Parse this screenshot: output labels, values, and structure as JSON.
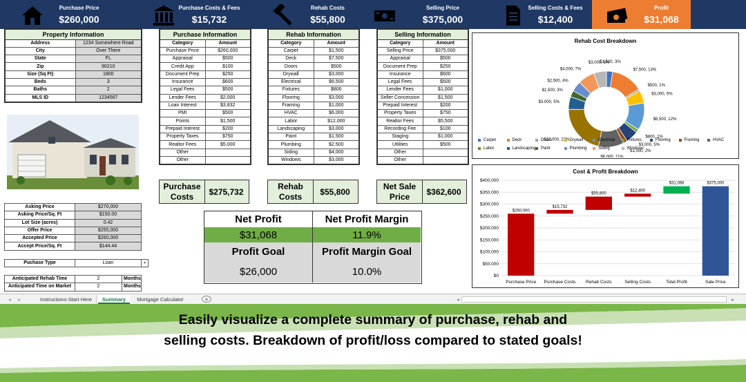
{
  "kpis": [
    {
      "icon": "house-icon",
      "label": "Purchase Price",
      "value": "$260,000"
    },
    {
      "icon": "bank-icon",
      "label": "Purchase Costs & Fees",
      "value": "$15,732"
    },
    {
      "icon": "hammer-icon",
      "label": "Rehab Costs",
      "value": "$55,800"
    },
    {
      "icon": "money-icon",
      "label": "Selling Price",
      "value": "$375,000"
    },
    {
      "icon": "document-icon",
      "label": "Selling Costs & Fees",
      "value": "$12,400"
    },
    {
      "icon": "cash-icon",
      "label": "Profit",
      "value": "$31,068"
    }
  ],
  "colors": {
    "banner": "#1f3864",
    "profit_accent": "#ed7d31",
    "table_header": "#e2efda",
    "profit_green": "#70ad47",
    "grey_cell": "#d9d9d9",
    "bar_red": "#c00000",
    "bar_green": "#00b050",
    "bar_blue": "#2f5597"
  },
  "property": {
    "title": "Property Information",
    "rows": [
      [
        "Address",
        "1234 Somewhere Road"
      ],
      [
        "City",
        "Over There"
      ],
      [
        "State",
        "FL"
      ],
      [
        "Zip",
        "90210"
      ],
      [
        "Size (Sq Ft)",
        "1800"
      ],
      [
        "Beds",
        "3"
      ],
      [
        "Baths",
        "2"
      ],
      [
        "MLS ID",
        "1234567"
      ]
    ]
  },
  "asking": {
    "rows": [
      [
        "Asking Price",
        "$270,000"
      ],
      [
        "Asking Price/Sq. Ft",
        "$150.00"
      ],
      [
        "Lot Size (acres)",
        "0.42"
      ],
      [
        "Offer Price",
        "$255,000"
      ],
      [
        "Accepted Price",
        "$260,000"
      ],
      [
        "Accept Price/Sq. Ft",
        "$144.44"
      ]
    ]
  },
  "purchase_type": {
    "label": "Puchase Type",
    "value": "Loan"
  },
  "anticipated": {
    "rows": [
      [
        "Anticipated Rehab Time",
        "2",
        "Months"
      ],
      [
        "Anticipated Time on Market",
        "2",
        "Months"
      ]
    ]
  },
  "col_headers": {
    "category": "Category",
    "amount": "Amount"
  },
  "purchase": {
    "title": "Purchase Information",
    "rows": [
      [
        "Purchase Price",
        "$260,000"
      ],
      [
        "Appraisal",
        "$500"
      ],
      [
        "Credit App",
        "$100"
      ],
      [
        "Document Prep",
        "$250"
      ],
      [
        "Insurance",
        "$600"
      ],
      [
        "Legal Fees",
        "$500"
      ],
      [
        "Lender Fees",
        "$2,000"
      ],
      [
        "Loan Interest",
        "$3,832"
      ],
      [
        "PMI",
        "$500"
      ],
      [
        "Points",
        "$1,500"
      ],
      [
        "Prepaid Interest",
        "$200"
      ],
      [
        "Property Taxes",
        "$750"
      ],
      [
        "Realtor Fees",
        "$5,000"
      ],
      [
        "Other",
        ""
      ],
      [
        "Other",
        ""
      ]
    ],
    "total_label": "Purchase Costs",
    "total": "$275,732"
  },
  "rehab": {
    "title": "Rehab Information",
    "rows": [
      [
        "Carpet",
        "$1,500"
      ],
      [
        "Deck",
        "$7,500"
      ],
      [
        "Doors",
        "$500"
      ],
      [
        "Drywall",
        "$3,000"
      ],
      [
        "Electrical",
        "$6,500"
      ],
      [
        "Fixtures",
        "$800"
      ],
      [
        "Flooring",
        "$3,000"
      ],
      [
        "Framing",
        "$1,000"
      ],
      [
        "HVAC",
        "$6,000"
      ],
      [
        "Labor",
        "$12,000"
      ],
      [
        "Landscaping",
        "$3,000"
      ],
      [
        "Paint",
        "$1,500"
      ],
      [
        "Plumbing",
        "$2,500"
      ],
      [
        "Siding",
        "$4,000"
      ],
      [
        "Windows",
        "$3,000"
      ]
    ],
    "total_label": "Rehab Costs",
    "total": "$55,800"
  },
  "selling": {
    "title": "Selling Information",
    "rows": [
      [
        "Selling Price",
        "$375,000"
      ],
      [
        "Appraisal",
        "$500"
      ],
      [
        "Document Prep",
        "$250"
      ],
      [
        "Insurance",
        "$600"
      ],
      [
        "Legal Fees",
        "$500"
      ],
      [
        "Lender Fees",
        "$1,000"
      ],
      [
        "Seller Concession",
        "$1,500"
      ],
      [
        "Prepaid Interest",
        "$200"
      ],
      [
        "Property Taxes",
        "$750"
      ],
      [
        "Realtor Fees",
        "$5,500"
      ],
      [
        "Recording Fee",
        "$100"
      ],
      [
        "Staging",
        "$1,000"
      ],
      [
        "Utilities",
        "$500"
      ],
      [
        "Other",
        ""
      ],
      [
        "Other",
        ""
      ]
    ],
    "total_label": "Net Sale Price",
    "total": "$362,600"
  },
  "profit_box": {
    "h1": "Net Profit",
    "h2": "Net Profit Margin",
    "v1": "$31,068",
    "v2": "11.9%",
    "h3": "Profit Goal",
    "h4": "Profit Margin Goal",
    "v3": "$26,000",
    "v4": "10.0%"
  },
  "tabs": [
    "Instructions-Start Here",
    "Summary",
    "Mortgage Calculator"
  ],
  "caption": {
    "line1": "Easily visualize a complete summary of purchase, rehab and",
    "line2": "selling costs. Breakdown of profit/loss compared to stated goals!"
  },
  "chart_data": [
    {
      "type": "pie",
      "title": "Rehab Cost Breakdown",
      "variant": "doughnut",
      "legend": "bottom",
      "categories": [
        "Carpet",
        "Deck",
        "Doors",
        "Drywall",
        "Electrical",
        "Fixtures",
        "Flooring",
        "Framing",
        "HVAC",
        "Labor",
        "Landscaping",
        "Paint",
        "Plumbing",
        "Siding",
        "Windows"
      ],
      "values": [
        1500,
        7500,
        500,
        3000,
        6500,
        800,
        3000,
        1000,
        6000,
        12000,
        3000,
        1500,
        2500,
        4000,
        3000
      ],
      "labels": [
        "$1,500, 3%",
        "$7,500, 13%",
        "$500, 1%",
        "$3,000, 5%",
        "$6,500, 12%",
        "$800, 1%",
        "$3,000, 5%",
        "$1,000, 2%",
        "$6,000, 11%",
        "$12,000, 22%",
        "$3,000, 5%",
        "$1,500, 3%",
        "$2,500, 4%",
        "$4,000, 7%",
        "$3,000, 5%"
      ],
      "colors": [
        "#4472c4",
        "#ed7d31",
        "#a5a5a5",
        "#ffc000",
        "#5b9bd5",
        "#70ad47",
        "#264478",
        "#9e480e",
        "#636363",
        "#997300",
        "#255e91",
        "#43682b",
        "#698ed0",
        "#f1975a",
        "#b7b7b7"
      ]
    },
    {
      "type": "bar",
      "title": "Cost & Profit Breakdown",
      "variant": "waterfall",
      "categories": [
        "Purchase Price",
        "Purchase Costs",
        "Rehab Costs",
        "Selling Costs",
        "Total Profit",
        "Sale Price"
      ],
      "values": [
        260000,
        15732,
        55800,
        12400,
        31068,
        375000
      ],
      "bases": [
        0,
        260000,
        275732,
        331532,
        343932,
        0
      ],
      "labels": [
        "$260,000",
        "$15,732",
        "$55,800",
        "$12,400",
        "$31,068",
        "$375,000"
      ],
      "colors": [
        "#c00000",
        "#c00000",
        "#c00000",
        "#c00000",
        "#00b050",
        "#2f5597"
      ],
      "yticks": [
        "$0",
        "$50,000",
        "$100,000",
        "$150,000",
        "$200,000",
        "$250,000",
        "$300,000",
        "$350,000",
        "$400,000"
      ],
      "ylim": [
        0,
        400000
      ],
      "grid": true
    }
  ]
}
